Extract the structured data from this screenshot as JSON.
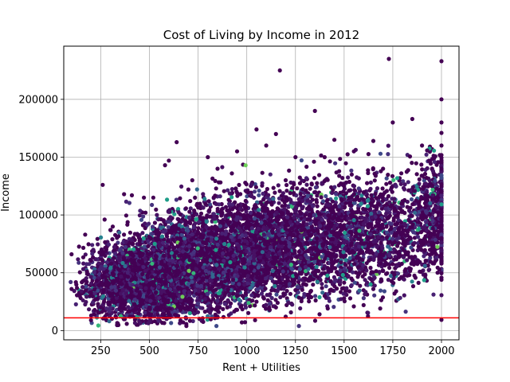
{
  "chart_data": {
    "type": "scatter",
    "title": "Cost of Living by Income in 2012",
    "xlabel": "Rent + Utilities",
    "ylabel": "Income",
    "xlim": [
      60,
      2090
    ],
    "ylim": [
      -8000,
      246000
    ],
    "xticks": [
      250,
      500,
      750,
      1000,
      1250,
      1500,
      1750,
      2000
    ],
    "xtick_labels": [
      "250",
      "500",
      "750",
      "1000",
      "1250",
      "1500",
      "1750",
      "2000"
    ],
    "yticks": [
      0,
      50000,
      100000,
      150000,
      200000
    ],
    "ytick_labels": [
      "0",
      "50000",
      "100000",
      "150000",
      "200000"
    ],
    "grid": true,
    "legend": "none",
    "colormap": "viridis",
    "reference_line": {
      "orientation": "horizontal",
      "y": 11000,
      "color": "#ff0000"
    },
    "sample_points": [
      [
        100,
        66000
      ],
      [
        100,
        36000
      ],
      [
        170,
        83000
      ],
      [
        180,
        49000
      ],
      [
        200,
        9000
      ],
      [
        230,
        43000
      ],
      [
        240,
        39000
      ],
      [
        260,
        126000
      ],
      [
        270,
        96000
      ],
      [
        300,
        87000
      ],
      [
        370,
        118000
      ],
      [
        410,
        117000
      ],
      [
        450,
        30000
      ],
      [
        480,
        102000
      ],
      [
        520,
        115000
      ],
      [
        580,
        143000
      ],
      [
        600,
        147000
      ],
      [
        640,
        163000
      ],
      [
        660,
        18000
      ],
      [
        690,
        4000
      ],
      [
        700,
        122000
      ],
      [
        720,
        130000
      ],
      [
        750,
        85000
      ],
      [
        800,
        150000
      ],
      [
        850,
        140000
      ],
      [
        900,
        100000
      ],
      [
        950,
        155000
      ],
      [
        1000,
        120000
      ],
      [
        1050,
        174000
      ],
      [
        1100,
        160000
      ],
      [
        1150,
        170000
      ],
      [
        1170,
        225000
      ],
      [
        1200,
        130000
      ],
      [
        1250,
        150000
      ],
      [
        1300,
        100000
      ],
      [
        1350,
        190000
      ],
      [
        1400,
        150000
      ],
      [
        1450,
        165000
      ],
      [
        1500,
        125000
      ],
      [
        1550,
        155000
      ],
      [
        1600,
        105000
      ],
      [
        1650,
        164000
      ],
      [
        1700,
        140000
      ],
      [
        1730,
        235000
      ],
      [
        1750,
        180000
      ],
      [
        1800,
        110000
      ],
      [
        1850,
        183000
      ],
      [
        1900,
        160000
      ],
      [
        1950,
        125000
      ],
      [
        2000,
        233000
      ],
      [
        2000,
        200000
      ],
      [
        2000,
        180000
      ],
      [
        2000,
        160000
      ],
      [
        2000,
        140000
      ],
      [
        2000,
        120000
      ],
      [
        2000,
        100000
      ],
      [
        2000,
        80000
      ],
      [
        2000,
        64000
      ],
      [
        1980,
        50000
      ],
      [
        1900,
        74000
      ],
      [
        1850,
        59000
      ],
      [
        1700,
        65000
      ],
      [
        1650,
        36000
      ],
      [
        1600,
        22000
      ],
      [
        1500,
        28000
      ],
      [
        1400,
        30000
      ],
      [
        1350,
        48000
      ],
      [
        1300,
        40000
      ],
      [
        1250,
        35000
      ],
      [
        1200,
        12000
      ],
      [
        1150,
        20000
      ],
      [
        1050,
        25000
      ],
      [
        950,
        30000
      ],
      [
        900,
        20000
      ],
      [
        850,
        12000
      ],
      [
        800,
        40000
      ],
      [
        700,
        25000
      ],
      [
        600,
        12000
      ],
      [
        500,
        20000
      ],
      [
        400,
        12000
      ],
      [
        350,
        25000
      ],
      [
        300,
        30000
      ],
      [
        250,
        20000
      ]
    ],
    "density_clouds": [
      {
        "x_center": 480,
        "x_spread": 150,
        "y_center": 43000,
        "y_spread": 16000,
        "count": 2600
      },
      {
        "x_center": 800,
        "x_spread": 190,
        "y_center": 62000,
        "y_spread": 22000,
        "count": 2200
      },
      {
        "x_center": 1180,
        "x_spread": 200,
        "y_center": 75000,
        "y_spread": 24000,
        "count": 1900
      },
      {
        "x_center": 1600,
        "x_spread": 210,
        "y_center": 85000,
        "y_spread": 25000,
        "count": 1500
      },
      {
        "x_center": 1960,
        "x_spread": 60,
        "y_center": 105000,
        "y_spread": 26000,
        "count": 450
      }
    ]
  }
}
